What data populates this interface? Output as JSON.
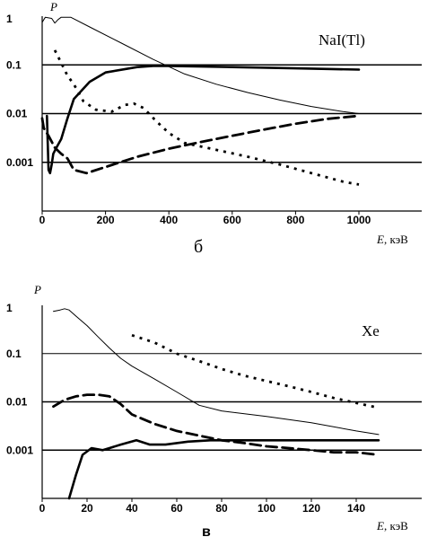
{
  "chart_data": [
    {
      "type": "line",
      "panel_label": "б",
      "annotation": "NaI(Tl)",
      "ylabel": "P",
      "xlabel_var": "E",
      "xlabel_unit": ", кэВ",
      "yscale": "log",
      "ylim": [
        0.0001,
        1
      ],
      "xlim": [
        0,
        1200
      ],
      "xticks": [
        0,
        200,
        400,
        600,
        800,
        1000
      ],
      "yticks": [
        {
          "value": 1,
          "label": "1"
        },
        {
          "value": 0.1,
          "label": "0.1"
        },
        {
          "value": 0.01,
          "label": "0.01"
        },
        {
          "value": 0.001,
          "label": "0.001"
        }
      ],
      "grid": "horizontal",
      "series": [
        {
          "style": "thin",
          "points": [
            [
              0,
              0.75
            ],
            [
              10,
              0.95
            ],
            [
              30,
              0.9
            ],
            [
              40,
              0.72
            ],
            [
              50,
              0.85
            ],
            [
              60,
              0.95
            ],
            [
              90,
              0.95
            ],
            [
              150,
              0.6
            ],
            [
              250,
              0.28
            ],
            [
              350,
              0.13
            ],
            [
              450,
              0.065
            ],
            [
              550,
              0.04
            ],
            [
              650,
              0.027
            ],
            [
              750,
              0.019
            ],
            [
              850,
              0.014
            ],
            [
              950,
              0.011
            ],
            [
              1000,
              0.01
            ]
          ]
        },
        {
          "style": "thick",
          "points": [
            [
              15,
              0.009
            ],
            [
              20,
              0.0007
            ],
            [
              25,
              0.0006
            ],
            [
              30,
              0.0009
            ],
            [
              35,
              0.0015
            ],
            [
              45,
              0.002
            ],
            [
              60,
              0.003
            ],
            [
              80,
              0.008
            ],
            [
              100,
              0.02
            ],
            [
              150,
              0.045
            ],
            [
              200,
              0.07
            ],
            [
              300,
              0.09
            ],
            [
              350,
              0.095
            ],
            [
              400,
              0.095
            ],
            [
              600,
              0.09
            ],
            [
              800,
              0.085
            ],
            [
              1000,
              0.08
            ]
          ]
        },
        {
          "style": "dotted",
          "points": [
            [
              40,
              0.2
            ],
            [
              60,
              0.11
            ],
            [
              80,
              0.06
            ],
            [
              100,
              0.04
            ],
            [
              130,
              0.018
            ],
            [
              170,
              0.012
            ],
            [
              220,
              0.011
            ],
            [
              260,
              0.015
            ],
            [
              290,
              0.016
            ],
            [
              320,
              0.013
            ],
            [
              360,
              0.007
            ],
            [
              400,
              0.004
            ],
            [
              450,
              0.0025
            ],
            [
              550,
              0.0018
            ],
            [
              650,
              0.0013
            ],
            [
              750,
              0.0009
            ],
            [
              850,
              0.0006
            ],
            [
              950,
              0.0004
            ],
            [
              1000,
              0.00035
            ]
          ]
        },
        {
          "style": "dashed",
          "points": [
            [
              0,
              0.008
            ],
            [
              5,
              0.005
            ],
            [
              20,
              0.0035
            ],
            [
              40,
              0.002
            ],
            [
              60,
              0.0015
            ],
            [
              80,
              0.0012
            ],
            [
              100,
              0.0007
            ],
            [
              140,
              0.0006
            ],
            [
              200,
              0.0008
            ],
            [
              300,
              0.0013
            ],
            [
              400,
              0.0019
            ],
            [
              500,
              0.0026
            ],
            [
              600,
              0.0035
            ],
            [
              700,
              0.0047
            ],
            [
              800,
              0.0062
            ],
            [
              900,
              0.0078
            ],
            [
              1000,
              0.009
            ]
          ]
        }
      ]
    },
    {
      "type": "line",
      "panel_label": "в",
      "annotation": "Xe",
      "ylabel": "P",
      "xlabel_var": "E",
      "xlabel_unit": ", кэВ",
      "yscale": "log",
      "ylim": [
        0.0001,
        1
      ],
      "xlim": [
        0,
        160
      ],
      "xticks": [
        0,
        20,
        40,
        60,
        80,
        100,
        120,
        140
      ],
      "yticks": [
        {
          "value": 1,
          "label": "1"
        },
        {
          "value": 0.1,
          "label": "0.1"
        },
        {
          "value": 0.01,
          "label": "0.01"
        },
        {
          "value": 0.001,
          "label": "0.001"
        }
      ],
      "grid": "horizontal",
      "series": [
        {
          "style": "thin",
          "points": [
            [
              5,
              0.75
            ],
            [
              8,
              0.8
            ],
            [
              10,
              0.85
            ],
            [
              12,
              0.8
            ],
            [
              15,
              0.6
            ],
            [
              20,
              0.38
            ],
            [
              25,
              0.22
            ],
            [
              30,
              0.13
            ],
            [
              35,
              0.08
            ],
            [
              40,
              0.055
            ],
            [
              50,
              0.03
            ],
            [
              60,
              0.016
            ],
            [
              70,
              0.0085
            ],
            [
              80,
              0.0065
            ],
            [
              100,
              0.005
            ],
            [
              120,
              0.0037
            ],
            [
              140,
              0.0025
            ],
            [
              150,
              0.0021
            ]
          ]
        },
        {
          "style": "thick",
          "points": [
            [
              12,
              0.0001
            ],
            [
              15,
              0.0003
            ],
            [
              18,
              0.0008
            ],
            [
              22,
              0.0011
            ],
            [
              27,
              0.001
            ],
            [
              30,
              0.0011
            ],
            [
              35,
              0.0013
            ],
            [
              42,
              0.0016
            ],
            [
              48,
              0.0013
            ],
            [
              55,
              0.0013
            ],
            [
              65,
              0.0015
            ],
            [
              75,
              0.0016
            ],
            [
              90,
              0.0016
            ],
            [
              110,
              0.0016
            ],
            [
              130,
              0.0016
            ],
            [
              150,
              0.0016
            ]
          ]
        },
        {
          "style": "dotted",
          "points": [
            [
              40,
              0.24
            ],
            [
              50,
              0.17
            ],
            [
              60,
              0.1
            ],
            [
              70,
              0.07
            ],
            [
              80,
              0.048
            ],
            [
              90,
              0.035
            ],
            [
              100,
              0.027
            ],
            [
              110,
              0.021
            ],
            [
              120,
              0.016
            ],
            [
              130,
              0.012
            ],
            [
              140,
              0.0095
            ],
            [
              150,
              0.0075
            ]
          ]
        },
        {
          "style": "dashed",
          "points": [
            [
              5,
              0.008
            ],
            [
              10,
              0.011
            ],
            [
              15,
              0.013
            ],
            [
              20,
              0.014
            ],
            [
              25,
              0.014
            ],
            [
              30,
              0.013
            ],
            [
              35,
              0.009
            ],
            [
              40,
              0.0055
            ],
            [
              50,
              0.0035
            ],
            [
              60,
              0.0025
            ],
            [
              70,
              0.002
            ],
            [
              80,
              0.0016
            ],
            [
              90,
              0.0014
            ],
            [
              100,
              0.0012
            ],
            [
              110,
              0.0011
            ],
            [
              120,
              0.001
            ],
            [
              130,
              0.0009
            ],
            [
              140,
              0.0009
            ],
            [
              150,
              0.0008
            ]
          ]
        }
      ]
    }
  ]
}
